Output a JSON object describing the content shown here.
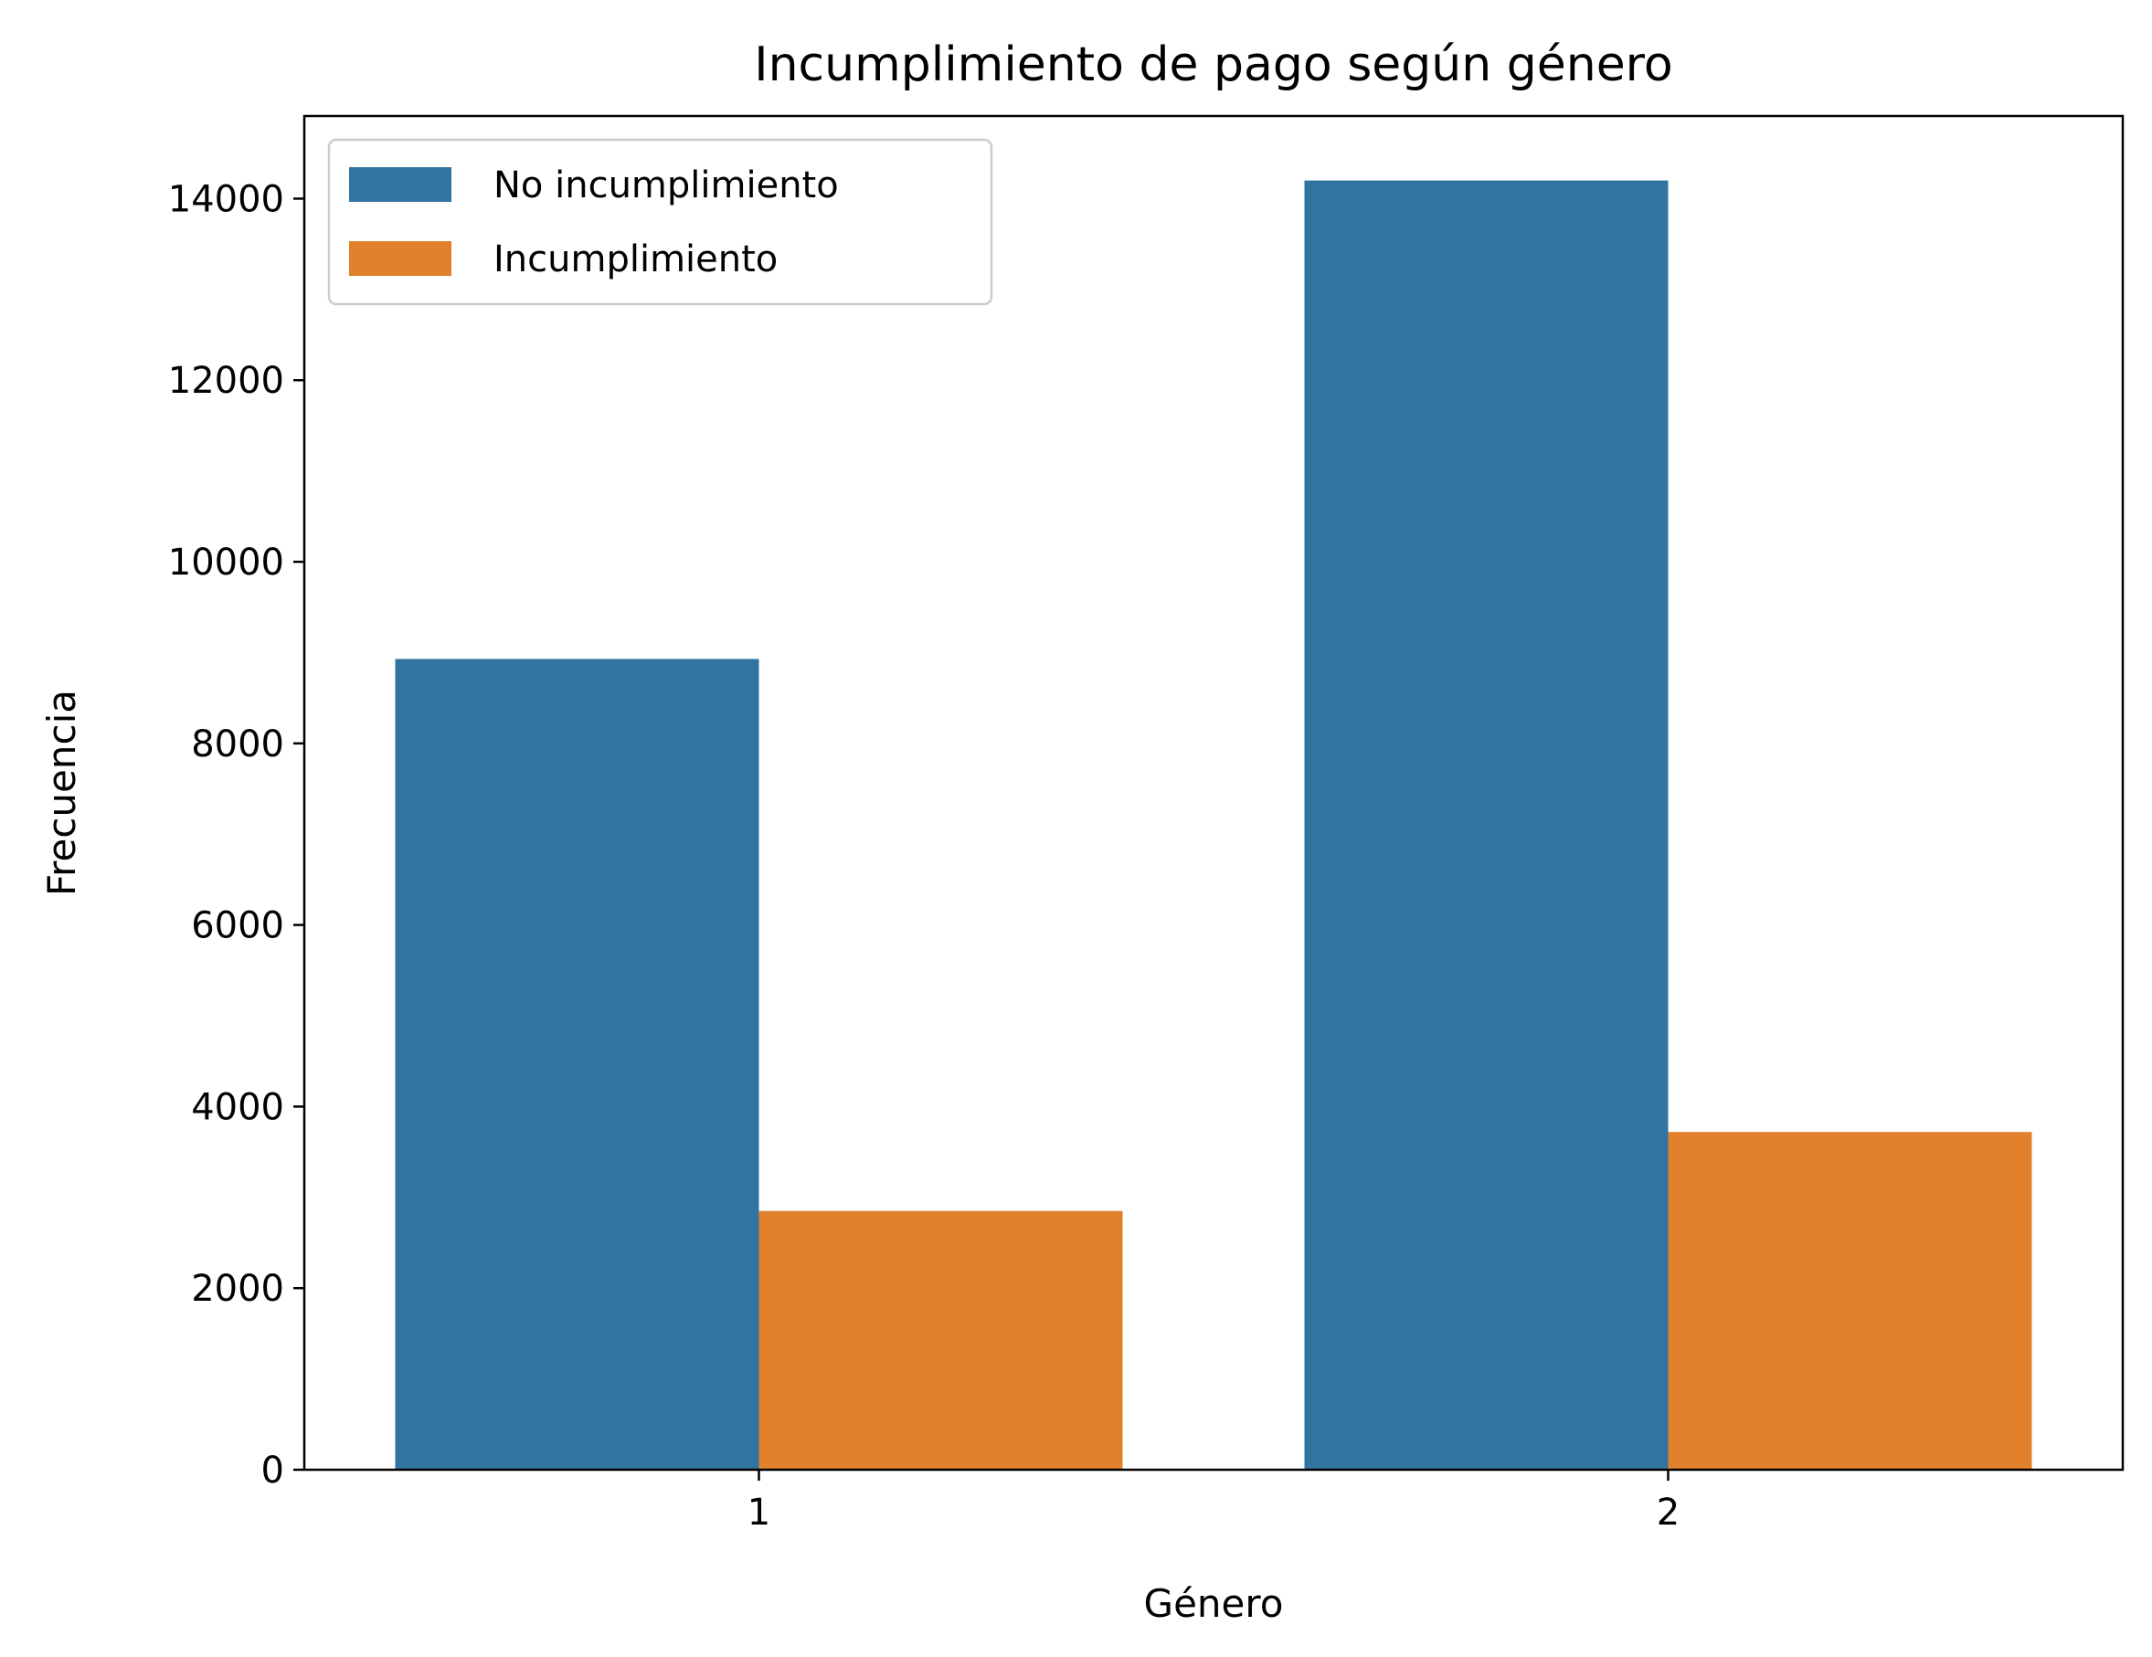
{
  "chart_data": {
    "type": "bar",
    "title": "Incumplimiento de pago según género",
    "xlabel": "Género",
    "ylabel": "Frecuencia",
    "categories": [
      "1",
      "2"
    ],
    "series": [
      {
        "name": "No incumplimiento",
        "color": "#3274a1",
        "values": [
          8930,
          14200
        ]
      },
      {
        "name": "Incumplimiento",
        "color": "#e1812c",
        "values": [
          2850,
          3720
        ]
      }
    ],
    "ylim": [
      0,
      14910
    ],
    "yticks": [
      0,
      2000,
      4000,
      6000,
      8000,
      10000,
      12000,
      14000
    ],
    "grid": false,
    "legend_position": "top-left"
  }
}
